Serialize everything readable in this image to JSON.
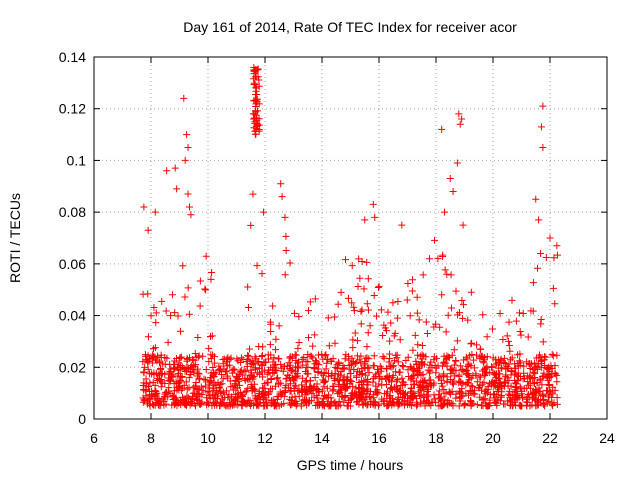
{
  "chart_data": {
    "type": "scatter",
    "title": "Day 161 of 2014, Rate Of TEC Index for receiver acor",
    "xlabel": "GPS time / hours",
    "ylabel": "ROTI / TECUs",
    "xlim": [
      6,
      24
    ],
    "ylim": [
      0,
      0.14
    ],
    "xticks": [
      "6",
      "8",
      "10",
      "12",
      "14",
      "16",
      "18",
      "20",
      "22",
      "24"
    ],
    "yticks": [
      "0",
      "0.02",
      "0.04",
      "0.06",
      "0.08",
      "0.1",
      "0.12",
      "0.14"
    ],
    "grid": true,
    "marker": "+",
    "series_color": "#ff0000",
    "data_range_hours": [
      7.7,
      22.3
    ],
    "envelope": {
      "x": [
        7.7,
        8.0,
        8.3,
        8.6,
        8.9,
        9.2,
        9.5,
        9.8,
        10.1,
        10.4,
        10.7,
        11.0,
        11.3,
        11.6,
        11.9,
        12.2,
        12.5,
        12.8,
        13.1,
        13.4,
        13.7,
        14.0,
        14.3,
        14.6,
        14.9,
        15.2,
        15.5,
        15.8,
        16.1,
        16.4,
        16.7,
        17.0,
        17.3,
        17.6,
        17.9,
        18.2,
        18.5,
        18.8,
        19.1,
        19.4,
        19.7,
        20.0,
        20.3,
        20.6,
        20.9,
        21.2,
        21.5,
        21.8,
        22.1
      ],
      "peak": [
        0.064,
        0.04,
        0.05,
        0.045,
        0.06,
        0.065,
        0.055,
        0.07,
        0.06,
        0.025,
        0.022,
        0.022,
        0.022,
        0.13,
        0.06,
        0.045,
        0.06,
        0.09,
        0.045,
        0.035,
        0.055,
        0.05,
        0.045,
        0.06,
        0.065,
        0.07,
        0.075,
        0.065,
        0.05,
        0.045,
        0.055,
        0.06,
        0.055,
        0.065,
        0.07,
        0.065,
        0.06,
        0.065,
        0.05,
        0.055,
        0.045,
        0.055,
        0.05,
        0.045,
        0.055,
        0.06,
        0.075,
        0.065,
        0.07
      ]
    },
    "outliers": [
      {
        "x": 7.75,
        "y": 0.082
      },
      {
        "x": 7.9,
        "y": 0.073
      },
      {
        "x": 8.15,
        "y": 0.08
      },
      {
        "x": 8.55,
        "y": 0.096
      },
      {
        "x": 8.85,
        "y": 0.097
      },
      {
        "x": 8.9,
        "y": 0.089
      },
      {
        "x": 9.15,
        "y": 0.124
      },
      {
        "x": 9.25,
        "y": 0.11
      },
      {
        "x": 9.3,
        "y": 0.105
      },
      {
        "x": 9.2,
        "y": 0.1
      },
      {
        "x": 9.3,
        "y": 0.087
      },
      {
        "x": 9.35,
        "y": 0.082
      },
      {
        "x": 9.4,
        "y": 0.079
      },
      {
        "x": 11.95,
        "y": 0.08
      },
      {
        "x": 12.55,
        "y": 0.091
      },
      {
        "x": 12.6,
        "y": 0.086
      },
      {
        "x": 12.7,
        "y": 0.078
      },
      {
        "x": 15.5,
        "y": 0.077
      },
      {
        "x": 15.8,
        "y": 0.083
      },
      {
        "x": 15.85,
        "y": 0.078
      },
      {
        "x": 16.8,
        "y": 0.075
      },
      {
        "x": 18.2,
        "y": 0.112
      },
      {
        "x": 18.3,
        "y": 0.08
      },
      {
        "x": 18.5,
        "y": 0.093
      },
      {
        "x": 18.6,
        "y": 0.088
      },
      {
        "x": 18.75,
        "y": 0.099
      },
      {
        "x": 18.8,
        "y": 0.118
      },
      {
        "x": 18.85,
        "y": 0.114
      },
      {
        "x": 18.9,
        "y": 0.116
      },
      {
        "x": 18.95,
        "y": 0.075
      },
      {
        "x": 21.5,
        "y": 0.085
      },
      {
        "x": 21.6,
        "y": 0.077
      },
      {
        "x": 21.75,
        "y": 0.121
      },
      {
        "x": 21.7,
        "y": 0.113
      },
      {
        "x": 21.75,
        "y": 0.105
      },
      {
        "x": 22.0,
        "y": 0.07
      }
    ],
    "cluster": {
      "x_range": [
        11.6,
        11.8
      ],
      "y_range": [
        0.11,
        0.136
      ]
    }
  }
}
